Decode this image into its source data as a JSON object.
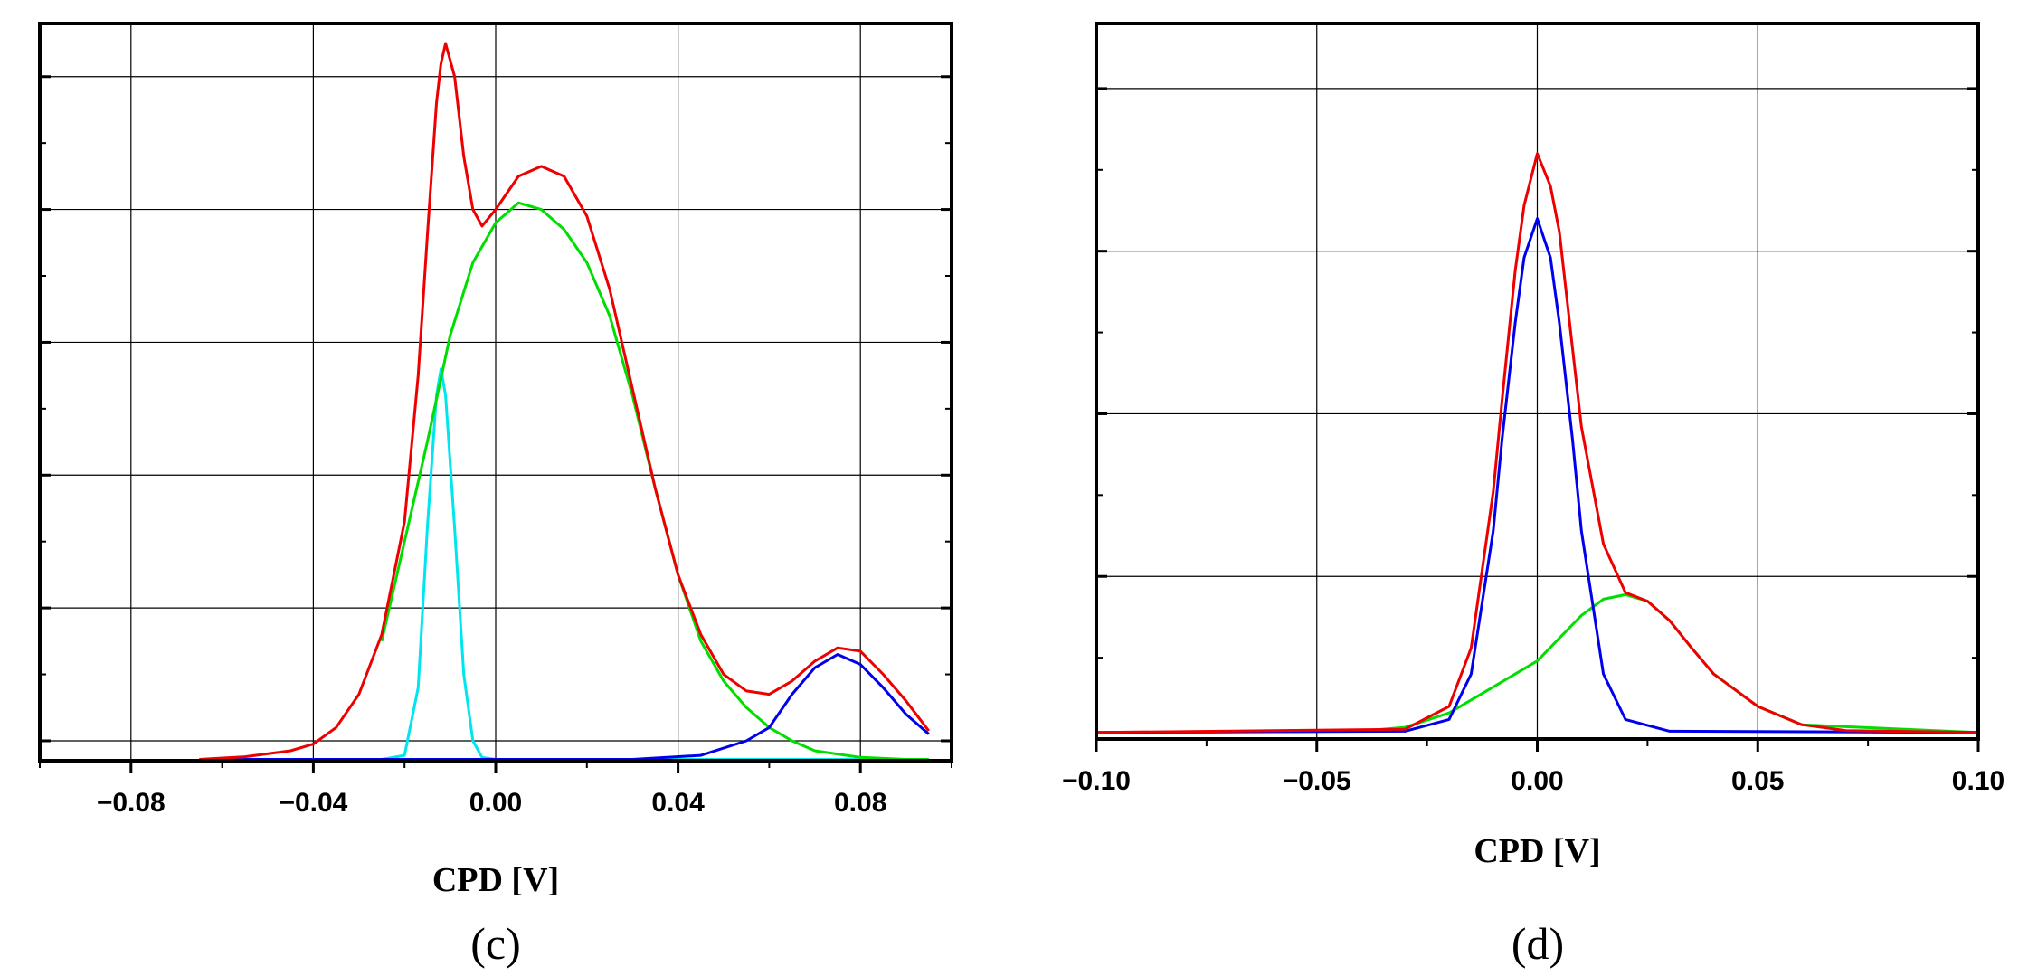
{
  "chart_data": [
    {
      "type": "line",
      "panel_label": "(c)",
      "xlabel": "CPD [V]",
      "ylabel": "",
      "xlim": [
        -0.1,
        0.1
      ],
      "ylim": [
        -0.03,
        1.08
      ],
      "x_ticks": [
        -0.08,
        -0.04,
        0.0,
        0.04,
        0.08
      ],
      "x_tick_labels": [
        "−0.08",
        "−0.04",
        "0.00",
        "0.04",
        "0.08"
      ],
      "x_grid": [
        -0.08,
        -0.04,
        0.0,
        0.04,
        0.08
      ],
      "y_grid": [
        0.0,
        0.2,
        0.4,
        0.6,
        0.8,
        1.0
      ],
      "y_tick_labels_shown": false,
      "grid": true,
      "legend": "none",
      "series": [
        {
          "color": "#00e5ee",
          "x": [
            -0.065,
            -0.025,
            -0.02,
            -0.017,
            -0.015,
            -0.013,
            -0.012,
            -0.011,
            -0.009,
            -0.007,
            -0.005,
            -0.003,
            0.0,
            0.095
          ],
          "values": [
            -0.028,
            -0.028,
            -0.022,
            0.08,
            0.32,
            0.52,
            0.56,
            0.52,
            0.32,
            0.1,
            0.0,
            -0.025,
            -0.028,
            -0.028
          ]
        },
        {
          "color": "#00dd00",
          "x": [
            -0.025,
            -0.02,
            -0.015,
            -0.01,
            -0.005,
            0.0,
            0.005,
            0.01,
            0.015,
            0.02,
            0.025,
            0.03,
            0.035,
            0.04,
            0.045,
            0.05,
            0.055,
            0.06,
            0.065,
            0.07,
            0.08,
            0.09,
            0.095
          ],
          "values": [
            0.15,
            0.3,
            0.45,
            0.61,
            0.72,
            0.78,
            0.81,
            0.8,
            0.77,
            0.72,
            0.64,
            0.52,
            0.38,
            0.25,
            0.15,
            0.09,
            0.05,
            0.02,
            0.0,
            -0.015,
            -0.025,
            -0.028,
            -0.028
          ]
        },
        {
          "color": "#0000ee",
          "x": [
            -0.065,
            0.03,
            0.045,
            0.055,
            0.06,
            0.065,
            0.07,
            0.075,
            0.08,
            0.085,
            0.09,
            0.095
          ],
          "values": [
            -0.028,
            -0.028,
            -0.022,
            0.0,
            0.02,
            0.07,
            0.11,
            0.13,
            0.115,
            0.08,
            0.04,
            0.01
          ]
        },
        {
          "color": "#ee0000",
          "x": [
            -0.065,
            -0.055,
            -0.045,
            -0.04,
            -0.035,
            -0.03,
            -0.025,
            -0.02,
            -0.017,
            -0.015,
            -0.013,
            -0.012,
            -0.011,
            -0.009,
            -0.007,
            -0.005,
            -0.003,
            0.0,
            0.005,
            0.01,
            0.015,
            0.02,
            0.025,
            0.03,
            0.035,
            0.04,
            0.045,
            0.05,
            0.055,
            0.06,
            0.065,
            0.07,
            0.075,
            0.08,
            0.085,
            0.09,
            0.095
          ],
          "values": [
            -0.028,
            -0.024,
            -0.015,
            -0.005,
            0.02,
            0.07,
            0.16,
            0.33,
            0.55,
            0.76,
            0.96,
            1.02,
            1.05,
            1.0,
            0.88,
            0.8,
            0.775,
            0.8,
            0.85,
            0.865,
            0.85,
            0.79,
            0.68,
            0.53,
            0.38,
            0.25,
            0.16,
            0.1,
            0.075,
            0.07,
            0.09,
            0.12,
            0.14,
            0.135,
            0.1,
            0.06,
            0.015
          ]
        }
      ]
    },
    {
      "type": "line",
      "panel_label": "(d)",
      "xlabel": "CPD [V]",
      "ylabel": "",
      "xlim": [
        -0.1,
        0.1
      ],
      "ylim": [
        0.0,
        1.1
      ],
      "x_ticks": [
        -0.1,
        -0.05,
        0.0,
        0.05,
        0.1
      ],
      "x_tick_labels": [
        "−0.10",
        "−0.05",
        "0.00",
        "0.05",
        "0.10"
      ],
      "x_grid": [
        -0.05,
        0.0,
        0.05
      ],
      "y_grid": [
        0.0,
        0.25,
        0.5,
        0.75,
        1.0
      ],
      "y_tick_labels_shown": false,
      "grid": true,
      "legend": "none",
      "series": [
        {
          "color": "#00dd00",
          "x": [
            -0.1,
            -0.04,
            -0.03,
            -0.02,
            -0.01,
            0.0,
            0.005,
            0.01,
            0.015,
            0.02,
            0.025,
            0.03,
            0.035,
            0.04,
            0.05,
            0.06,
            0.1
          ],
          "values": [
            0.01,
            0.012,
            0.018,
            0.04,
            0.08,
            0.12,
            0.155,
            0.19,
            0.215,
            0.222,
            0.212,
            0.182,
            0.14,
            0.1,
            0.05,
            0.022,
            0.01
          ]
        },
        {
          "color": "#0000ee",
          "x": [
            -0.1,
            -0.03,
            -0.02,
            -0.015,
            -0.01,
            -0.008,
            -0.005,
            -0.003,
            0.0,
            0.003,
            0.005,
            0.008,
            0.01,
            0.015,
            0.02,
            0.03,
            0.1
          ],
          "values": [
            0.01,
            0.012,
            0.03,
            0.1,
            0.32,
            0.46,
            0.64,
            0.74,
            0.8,
            0.74,
            0.64,
            0.46,
            0.32,
            0.1,
            0.03,
            0.012,
            0.01
          ]
        },
        {
          "color": "#ee0000",
          "x": [
            -0.1,
            -0.03,
            -0.02,
            -0.015,
            -0.01,
            -0.008,
            -0.005,
            -0.003,
            0.0,
            0.003,
            0.005,
            0.008,
            0.01,
            0.015,
            0.02,
            0.025,
            0.03,
            0.035,
            0.04,
            0.05,
            0.06,
            0.07,
            0.1
          ],
          "values": [
            0.01,
            0.015,
            0.05,
            0.14,
            0.38,
            0.52,
            0.72,
            0.82,
            0.9,
            0.85,
            0.78,
            0.6,
            0.48,
            0.3,
            0.225,
            0.212,
            0.182,
            0.14,
            0.1,
            0.05,
            0.022,
            0.013,
            0.01
          ]
        }
      ]
    }
  ]
}
